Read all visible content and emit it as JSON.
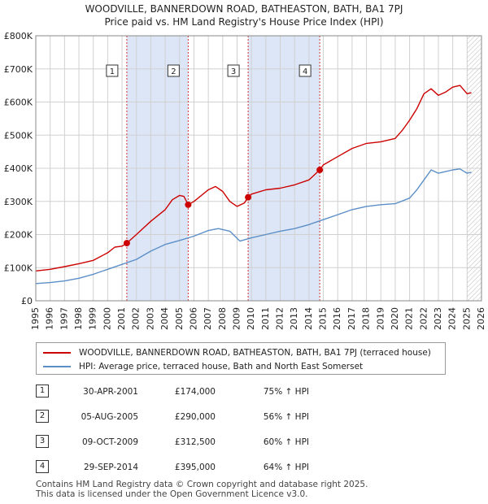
{
  "title_line1": "WOODVILLE, BANNERDOWN ROAD, BATHEASTON, BATH, BA1 7PJ",
  "title_line2": "Price paid vs. HM Land Registry's House Price Index (HPI)",
  "colors": {
    "property": "#cc0000",
    "hpi": "#5b8fc7",
    "shade": "#dde6f7",
    "grid": "#d0d0d0",
    "vline": "#cc3333"
  },
  "chart_data": {
    "type": "line",
    "xlim": [
      1995,
      2026
    ],
    "ylim": [
      0,
      800000
    ],
    "x_ticks": [
      1995,
      1996,
      1997,
      1998,
      1999,
      2000,
      2001,
      2002,
      2003,
      2004,
      2005,
      2006,
      2007,
      2008,
      2009,
      2010,
      2011,
      2012,
      2013,
      2014,
      2015,
      2016,
      2017,
      2018,
      2019,
      2020,
      2021,
      2022,
      2023,
      2024,
      2025,
      2026
    ],
    "y_ticks": [
      {
        "value": 0,
        "label": "£0"
      },
      {
        "value": 100000,
        "label": "£100K"
      },
      {
        "value": 200000,
        "label": "£200K"
      },
      {
        "value": 300000,
        "label": "£300K"
      },
      {
        "value": 400000,
        "label": "£400K"
      },
      {
        "value": 500000,
        "label": "£500K"
      },
      {
        "value": 600000,
        "label": "£600K"
      },
      {
        "value": 700000,
        "label": "£700K"
      },
      {
        "value": 800000,
        "label": "£800K"
      }
    ],
    "shaded_ranges": [
      [
        2001.33,
        2005.6
      ],
      [
        2009.77,
        2014.75
      ]
    ],
    "future_hatch_from": 2025.0,
    "series": [
      {
        "name": "WOODVILLE, BANNERDOWN ROAD, BATHEASTON, BATH, BA1 7PJ (terraced house)",
        "x": [
          1995,
          1996,
          1997,
          1998,
          1999,
          2000,
          2000.5,
          2001.0,
          2001.33,
          2002,
          2003,
          2004,
          2004.5,
          2005.0,
          2005.3,
          2005.6,
          2006,
          2007,
          2007.5,
          2008,
          2008.5,
          2009,
          2009.5,
          2009.77,
          2010,
          2011,
          2012,
          2013,
          2014,
          2014.75,
          2015,
          2016,
          2017,
          2018,
          2019,
          2020,
          2020.5,
          2021,
          2021.5,
          2022,
          2022.5,
          2023,
          2023.5,
          2024,
          2024.5,
          2025,
          2025.3
        ],
        "values": [
          90000,
          95000,
          103000,
          112000,
          122000,
          145000,
          162000,
          165000,
          174000,
          200000,
          240000,
          275000,
          305000,
          318000,
          315000,
          290000,
          300000,
          335000,
          345000,
          330000,
          300000,
          285000,
          295000,
          312500,
          322000,
          335000,
          340000,
          350000,
          365000,
          395000,
          410000,
          435000,
          460000,
          475000,
          480000,
          490000,
          515000,
          545000,
          580000,
          625000,
          640000,
          620000,
          630000,
          645000,
          650000,
          625000,
          628000
        ]
      },
      {
        "name": "HPI: Average price, terraced house, Bath and North East Somerset",
        "x": [
          1995,
          1996,
          1997,
          1998,
          1999,
          2000,
          2001,
          2002,
          2003,
          2004,
          2005,
          2006,
          2007,
          2007.7,
          2008.5,
          2009.2,
          2010,
          2011,
          2012,
          2013,
          2014,
          2015,
          2016,
          2017,
          2018,
          2019,
          2020,
          2021,
          2021.5,
          2022,
          2022.5,
          2023,
          2023.5,
          2024,
          2024.5,
          2025,
          2025.3
        ],
        "values": [
          52000,
          55000,
          60000,
          68000,
          80000,
          95000,
          110000,
          125000,
          150000,
          170000,
          182000,
          195000,
          212000,
          218000,
          210000,
          180000,
          190000,
          200000,
          210000,
          218000,
          230000,
          245000,
          260000,
          275000,
          285000,
          290000,
          293000,
          310000,
          335000,
          365000,
          395000,
          385000,
          390000,
          395000,
          398000,
          385000,
          388000
        ]
      }
    ],
    "sales": [
      {
        "id": "1",
        "x": 2001.33,
        "price": 174000
      },
      {
        "id": "2",
        "x": 2005.6,
        "price": 290000
      },
      {
        "id": "3",
        "x": 2009.77,
        "price": 312500
      },
      {
        "id": "4",
        "x": 2014.75,
        "price": 395000
      }
    ]
  },
  "legend": {
    "property_label": "WOODVILLE, BANNERDOWN ROAD, BATHEASTON, BATH, BA1 7PJ (terraced house)",
    "hpi_label": "HPI: Average price, terraced house, Bath and North East Somerset"
  },
  "table": [
    {
      "num": "1",
      "date": "30-APR-2001",
      "price": "£174,000",
      "hpi": "75% ↑ HPI"
    },
    {
      "num": "2",
      "date": "05-AUG-2005",
      "price": "£290,000",
      "hpi": "56% ↑ HPI"
    },
    {
      "num": "3",
      "date": "09-OCT-2009",
      "price": "£312,500",
      "hpi": "60% ↑ HPI"
    },
    {
      "num": "4",
      "date": "29-SEP-2014",
      "price": "£395,000",
      "hpi": "64% ↑ HPI"
    }
  ],
  "footer_line1": "Contains HM Land Registry data © Crown copyright and database right 2025.",
  "footer_line2": "This data is licensed under the Open Government Licence v3.0."
}
